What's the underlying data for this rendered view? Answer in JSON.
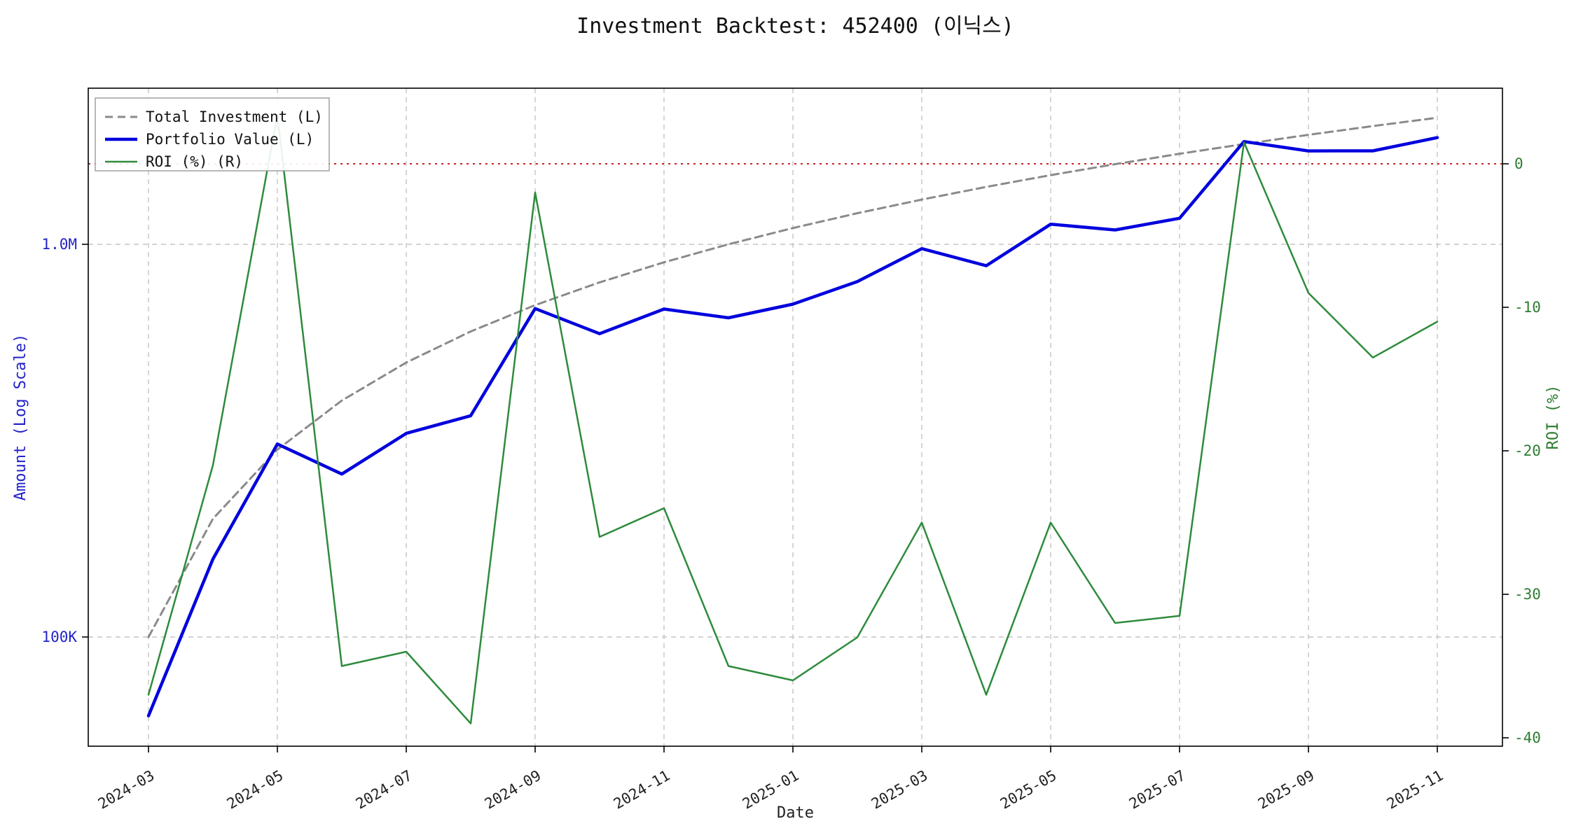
{
  "chart_data": {
    "type": "line",
    "title": "Investment Backtest: 452400 (이닉스)",
    "xlabel": "Date",
    "ylabel_left": "Amount (Log Scale)",
    "ylabel_right": "ROI (%)",
    "x": [
      "2024-03",
      "2024-04",
      "2024-05",
      "2024-06",
      "2024-07",
      "2024-08",
      "2024-09",
      "2024-10",
      "2024-11",
      "2024-12",
      "2025-01",
      "2025-02",
      "2025-03",
      "2025-04",
      "2025-05",
      "2025-06",
      "2025-07",
      "2025-08",
      "2025-09",
      "2025-10",
      "2025-11"
    ],
    "x_tick_labels": [
      "2024-03",
      "2024-05",
      "2024-07",
      "2024-09",
      "2024-11",
      "2025-01",
      "2025-03",
      "2025-05",
      "2025-07",
      "2025-09",
      "2025-11"
    ],
    "left_axis": {
      "scale": "log",
      "tick_labels": [
        "1.0M",
        "100K"
      ],
      "tick_values": [
        1000000,
        100000
      ],
      "range_approx": [
        52000,
        2500000
      ]
    },
    "right_axis": {
      "tick_labels": [
        "0",
        "-10",
        "-20",
        "-30",
        "-40"
      ],
      "tick_values": [
        0,
        -10,
        -20,
        -30,
        -40
      ],
      "range_approx": [
        -40.6,
        5.3
      ]
    },
    "series": [
      {
        "name": "Total Investment (L)",
        "axis": "left",
        "color": "#8a8a8a",
        "dash": "11 7",
        "width": 3,
        "values": [
          100000,
          200000,
          300000,
          400000,
          500000,
          600000,
          700000,
          800000,
          900000,
          1000000,
          1100000,
          1200000,
          1300000,
          1400000,
          1500000,
          1600000,
          1700000,
          1800000,
          1900000,
          2000000,
          2100000
        ]
      },
      {
        "name": "Portfolio Value (L)",
        "axis": "left",
        "color": "#0000dd",
        "dash": "",
        "width": 4.5,
        "values": [
          63000,
          158000,
          310000,
          260000,
          330000,
          366000,
          686000,
          592000,
          684000,
          650000,
          704000,
          804000,
          975000,
          882000,
          1125000,
          1088000,
          1165000,
          1827000,
          1729000,
          1730000,
          1869000
        ]
      },
      {
        "name": "ROI (%) (R)",
        "axis": "right",
        "color": "#2e8b3c",
        "dash": "",
        "width": 2.5,
        "values": [
          -37,
          -21,
          3.4,
          -35,
          -34,
          -39,
          -2,
          -26,
          -24,
          -35,
          -36,
          -33,
          -25,
          -37,
          -25,
          -32,
          -31.5,
          1.5,
          -9,
          -13.5,
          -11
        ]
      }
    ],
    "zero_line": {
      "axis": "right",
      "value": 0,
      "color": "#cc2222",
      "style": "dotted"
    },
    "legend": {
      "position": "top-left",
      "entries": [
        "Total Investment (L)",
        "Portfolio Value (L)",
        "ROI (%) (R)"
      ]
    },
    "grid": {
      "on": true,
      "color": "#c4c4c4",
      "style": "dashed"
    },
    "colors": {
      "left_axis_text": "#2323c8",
      "right_axis_text": "#2e7d32",
      "x_axis_text": "#222222",
      "spine": "#000000"
    }
  }
}
